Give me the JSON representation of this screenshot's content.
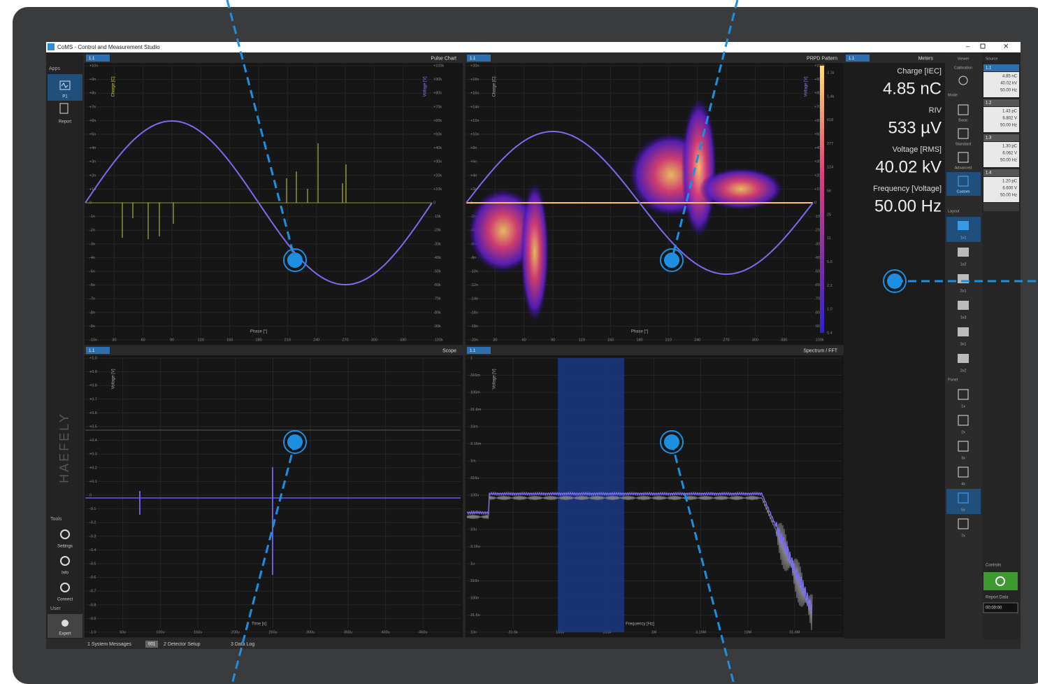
{
  "window": {
    "title": "CoMS - Control and Measurement Studio"
  },
  "sidebar": {
    "apps_label": "Apps",
    "apps": [
      "P1",
      "Report"
    ],
    "brand": "HAEFELY",
    "tools_label": "Tools",
    "tools": [
      "Settings",
      "Info",
      "Connect"
    ],
    "user_label": "User",
    "user": "Expert"
  },
  "panels": [
    {
      "source": "1.1",
      "title": "Pulse Chart",
      "left_axis": "Charge [C]",
      "right_axis": "Voltage [V]",
      "x_axis": "Phase [°]",
      "left_ticks": [
        "+10n",
        "+9n",
        "+8n",
        "+7n",
        "+6n",
        "+5n",
        "+4n",
        "+3n",
        "+2n",
        "+1n",
        "0",
        "-1n",
        "-2n",
        "-3n",
        "-4n",
        "-5n",
        "-6n",
        "-7n",
        "-8n",
        "-9n",
        "-10n"
      ],
      "right_ticks": [
        "+100k",
        "+90k",
        "+80k",
        "+70k",
        "+60k",
        "+50k",
        "+40k",
        "+30k",
        "+20k",
        "+10k",
        "0",
        "-10k",
        "-20k",
        "-30k",
        "-40k",
        "-50k",
        "-60k",
        "-70k",
        "-80k",
        "-90k",
        "-100k"
      ],
      "x_ticks": [
        "30",
        "60",
        "90",
        "120",
        "150",
        "180",
        "210",
        "240",
        "270",
        "300",
        "330"
      ]
    },
    {
      "source": "1.1",
      "title": "PRPD Pattern",
      "left_axis": "Charge [C]",
      "right_axis": "Voltage [V]",
      "x_axis": "Phase [°]",
      "left_ticks": [
        "+20n",
        "+18n",
        "+16n",
        "+14n",
        "+12n",
        "+10n",
        "+8n",
        "+6n",
        "+4n",
        "+2n",
        "0",
        "-2n",
        "-4n",
        "-6n",
        "-8n",
        "-10n",
        "-12n",
        "-14n",
        "-16n",
        "-18n",
        "-20n"
      ],
      "right_ticks": [
        "+100k",
        "+90k",
        "+80k",
        "+70k",
        "+60k",
        "+50k",
        "+40k",
        "+30k",
        "+20k",
        "+10k",
        "0",
        "-10k",
        "-20k",
        "-30k",
        "-40k",
        "-50k",
        "-60k",
        "-70k",
        "-80k",
        "-90k",
        "-100k"
      ],
      "x_ticks": [
        "30",
        "60",
        "90",
        "120",
        "150",
        "180",
        "210",
        "240",
        "270",
        "300",
        "330"
      ],
      "color_ticks": [
        "3.1k",
        "1.4k",
        "618",
        "277",
        "124",
        "56",
        "25",
        "11",
        "5.0",
        "2.2",
        "1.0",
        "0.4"
      ]
    },
    {
      "source": "1.1",
      "title": "Scope",
      "left_axis": "Voltage [V]",
      "x_axis": "Time [s]",
      "left_ticks": [
        "+1.0",
        "+0.9",
        "+0.8",
        "+0.7",
        "+0.6",
        "+0.5",
        "+0.4",
        "+0.3",
        "+0.2",
        "+0.1",
        "0",
        "-0.1",
        "-0.2",
        "-0.3",
        "-0.4",
        "-0.5",
        "-0.6",
        "-0.7",
        "-0.8",
        "-0.9",
        "-1.0"
      ],
      "x_ticks": [
        "50u",
        "100u",
        "150u",
        "200u",
        "250u",
        "300u",
        "350u",
        "400u",
        "450u"
      ]
    },
    {
      "source": "1.1",
      "title": "Spectrum / FFT",
      "left_axis": "Voltage [V]",
      "x_axis": "Frequency [Hz]",
      "left_ticks": [
        "1",
        "316m",
        "100m",
        "31.6m",
        "10m",
        "3.16m",
        "1m",
        "316u",
        "100u",
        "31.6u",
        "10u",
        "3.16u",
        "1u",
        "316n",
        "100n",
        "31.6n",
        "10n"
      ],
      "x_ticks": [
        "31.6k",
        "100k",
        "316k",
        "1M",
        "3.16M",
        "10M",
        "31.6M"
      ]
    }
  ],
  "meters": {
    "source": "1.1",
    "title": "Meters",
    "items": [
      {
        "label": "Charge [IEC]",
        "value": "4.85 nC"
      },
      {
        "label": "RIV",
        "value": "533 µV"
      },
      {
        "label": "Voltage [RMS]",
        "value": "40.02 kV"
      },
      {
        "label": "Frequency [Voltage]",
        "value": "50.00 Hz"
      }
    ]
  },
  "viewer": {
    "title": "Viewer",
    "calibration": "Calibration",
    "mode_label": "Mode",
    "modes": [
      "Basic",
      "Standard",
      "Advanced",
      "Custom"
    ],
    "layout_label": "Layout",
    "layouts": [
      "1x1",
      "1x2",
      "2x1",
      "1x3",
      "3x1",
      "2x2"
    ],
    "panel_label": "Panel",
    "panel_counts": [
      "1x",
      "2x",
      "3x",
      "4x",
      "5x",
      "7x"
    ]
  },
  "sources": {
    "title": "Source",
    "items": [
      {
        "id": "1.1",
        "lines": [
          "4.85 nC",
          "40.02 kV",
          "50.00 Hz"
        ]
      },
      {
        "id": "1.2",
        "lines": [
          "1.43 pC",
          "6.802 V",
          "50.00 Hz"
        ]
      },
      {
        "id": "1.3",
        "lines": [
          "1.30 pC",
          "6.062 V",
          "50.00 Hz"
        ]
      },
      {
        "id": "1.4",
        "lines": [
          "1.20 pC",
          "6.600 V",
          "50.00 Hz"
        ]
      }
    ],
    "controls": "Controls",
    "report": "Report Data",
    "time": "00:00:00"
  },
  "status": {
    "tabs": [
      "1  System Messages",
      "2  Detector Setup",
      "3  Data Log"
    ],
    "count": "001"
  }
}
